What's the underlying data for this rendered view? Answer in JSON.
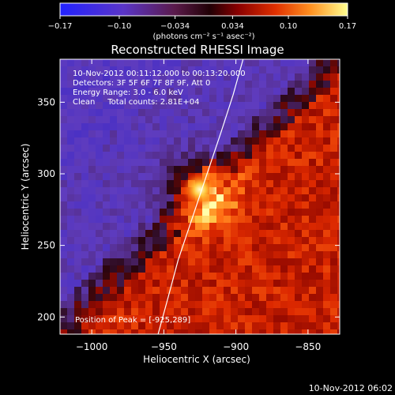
{
  "chart_data": {
    "type": "heatmap",
    "title": "Reconstructed RHESSI Image",
    "xlabel": "Heliocentric X (arcsec)",
    "ylabel": "Heliocentric Y (arcsec)",
    "xlim": [
      -1022,
      -828
    ],
    "ylim": [
      188,
      380
    ],
    "x_ticks": [
      -1000,
      -950,
      -900,
      -850
    ],
    "x_tick_labels": [
      "−1000",
      "−950",
      "−900",
      "−850"
    ],
    "y_ticks": [
      200,
      250,
      300,
      350
    ],
    "y_tick_labels": [
      "200",
      "250",
      "300",
      "350"
    ],
    "colorbar": {
      "range": [
        -0.17,
        0.17
      ],
      "ticks": [
        -0.17,
        -0.1,
        -0.034,
        0.034,
        0.1,
        0.17
      ],
      "tick_labels": [
        "−0.17",
        "−0.10",
        "−0.034",
        "0.034",
        "0.10",
        "0.17"
      ],
      "unit_text": "(photons cm⁻² s⁻¹ asec⁻²)",
      "colormap": "blue-purple-red-yellow-white"
    },
    "annotations": [
      "10-Nov-2012 00:11:12.000 to 00:13:20.000",
      "Detectors: 3F 5F 6F 7F 8F 9F, Att 0",
      "Energy Range: 3.0 - 6.0 keV",
      "Clean     Total counts: 2.81E+04"
    ],
    "peak_label": "Position of Peak = [-925,289]",
    "peak": {
      "x": -925,
      "y": 289
    },
    "limb_curve": [
      {
        "x": -954,
        "y": 188
      },
      {
        "x": -948,
        "y": 210
      },
      {
        "x": -940,
        "y": 240
      },
      {
        "x": -930,
        "y": 270
      },
      {
        "x": -920,
        "y": 300
      },
      {
        "x": -910,
        "y": 330
      },
      {
        "x": -902,
        "y": 355
      },
      {
        "x": -895,
        "y": 380
      }
    ],
    "timestamp": "10-Nov-2012 06:02"
  }
}
